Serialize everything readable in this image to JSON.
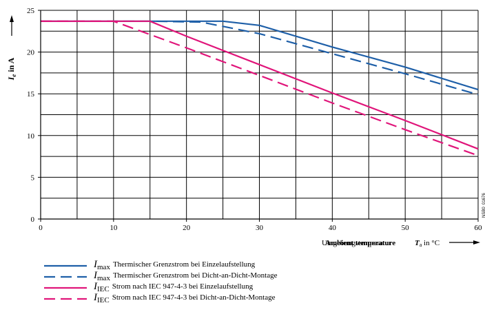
{
  "chart_data": {
    "type": "line",
    "ylabel": {
      "symbol": "I",
      "subscript": "e",
      "unit": "in A"
    },
    "xlabel": {
      "text": "Umgebungstemperatur",
      "overlay": "Ambient temperature",
      "symbol": "T",
      "subscript": "a",
      "unit": "in °C"
    },
    "xlim": [
      0,
      60
    ],
    "ylim": [
      0,
      25
    ],
    "x_ticks": [
      "0",
      "10",
      "20",
      "30",
      "40",
      "50",
      "60"
    ],
    "y_ticks": [
      "0",
      "5",
      "10",
      "15",
      "20",
      "25"
    ],
    "grid": true,
    "code": "NSB0_01676",
    "series": [
      {
        "name": "Thermischer Grenzstrom bei Einzelaufstellung",
        "symbol": "I",
        "subscript": "max",
        "color": "#1e5fa8",
        "dash": "solid",
        "points": [
          [
            0,
            23.7
          ],
          [
            15,
            23.7
          ],
          [
            25,
            23.7
          ],
          [
            30,
            23.2
          ],
          [
            40,
            20.6
          ],
          [
            50,
            18.2
          ],
          [
            60,
            15.5
          ]
        ]
      },
      {
        "name": "Thermischer Grenzstrom bei Dicht-an-Dicht-Montage",
        "symbol": "I",
        "subscript": "max",
        "color": "#1e5fa8",
        "dash": "dashed",
        "points": [
          [
            0,
            23.7
          ],
          [
            15,
            23.7
          ],
          [
            22,
            23.6
          ],
          [
            30,
            22.2
          ],
          [
            40,
            19.8
          ],
          [
            50,
            17.4
          ],
          [
            60,
            14.9
          ]
        ]
      },
      {
        "name": "Strom nach IEC 947-4-3 bei Einzelaufstellung",
        "symbol": "I",
        "subscript": "IEC",
        "color": "#e0157a",
        "dash": "solid",
        "points": [
          [
            0,
            23.7
          ],
          [
            15,
            23.7
          ],
          [
            20,
            21.9
          ],
          [
            30,
            18.5
          ],
          [
            40,
            15.1
          ],
          [
            50,
            11.8
          ],
          [
            60,
            8.4
          ]
        ]
      },
      {
        "name": "Strom nach IEC 947-4-3 bei Dicht-an-Dicht-Montage",
        "symbol": "I",
        "subscript": "IEC",
        "color": "#e0157a",
        "dash": "dashed",
        "points": [
          [
            0,
            23.7
          ],
          [
            10,
            23.7
          ],
          [
            20,
            20.5
          ],
          [
            30,
            17.2
          ],
          [
            40,
            13.9
          ],
          [
            50,
            10.7
          ],
          [
            60,
            7.6
          ]
        ]
      }
    ]
  }
}
